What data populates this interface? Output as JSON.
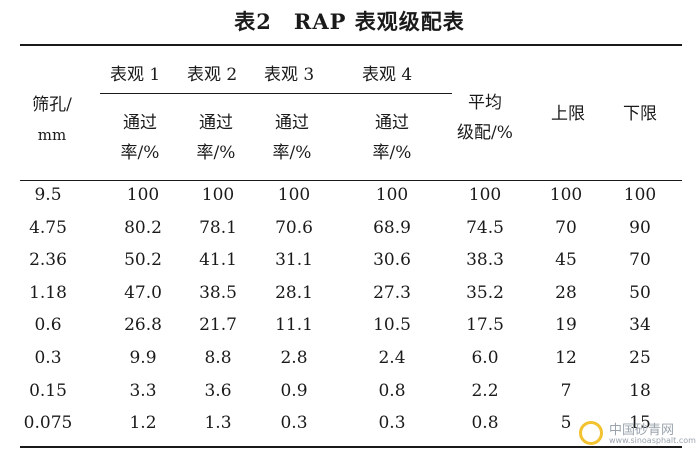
{
  "title": "表2　RAP 表观级配表",
  "header": {
    "sieve": [
      "筛孔/",
      "mm"
    ],
    "groups": [
      "表观 1",
      "表观 2",
      "表观 3",
      "表观 4"
    ],
    "pass_rate": [
      "通过",
      "率/%"
    ],
    "avg": [
      "平均",
      "级配/%"
    ],
    "upper": "上限",
    "lower": "下限"
  },
  "rows": [
    [
      "9.5",
      "100",
      "100",
      "100",
      "100",
      "100",
      "100",
      "100"
    ],
    [
      "4.75",
      "80.2",
      "78.1",
      "70.6",
      "68.9",
      "74.5",
      "70",
      "90"
    ],
    [
      "2.36",
      "50.2",
      "41.1",
      "31.1",
      "30.6",
      "38.3",
      "45",
      "70"
    ],
    [
      "1.18",
      "47.0",
      "38.5",
      "28.1",
      "27.3",
      "35.2",
      "28",
      "50"
    ],
    [
      "0.6",
      "26.8",
      "21.7",
      "11.1",
      "10.5",
      "17.5",
      "19",
      "34"
    ],
    [
      "0.3",
      "9.9",
      "8.8",
      "2.8",
      "2.4",
      "6.0",
      "12",
      "25"
    ],
    [
      "0.15",
      "3.3",
      "3.6",
      "0.9",
      "0.8",
      "2.2",
      "7",
      "18"
    ],
    [
      "0.075",
      "1.2",
      "1.3",
      "0.3",
      "0.3",
      "0.8",
      "5",
      "15"
    ]
  ],
  "watermark": {
    "text": "中国砂青网",
    "url": "www.sinoasphalt.com"
  }
}
